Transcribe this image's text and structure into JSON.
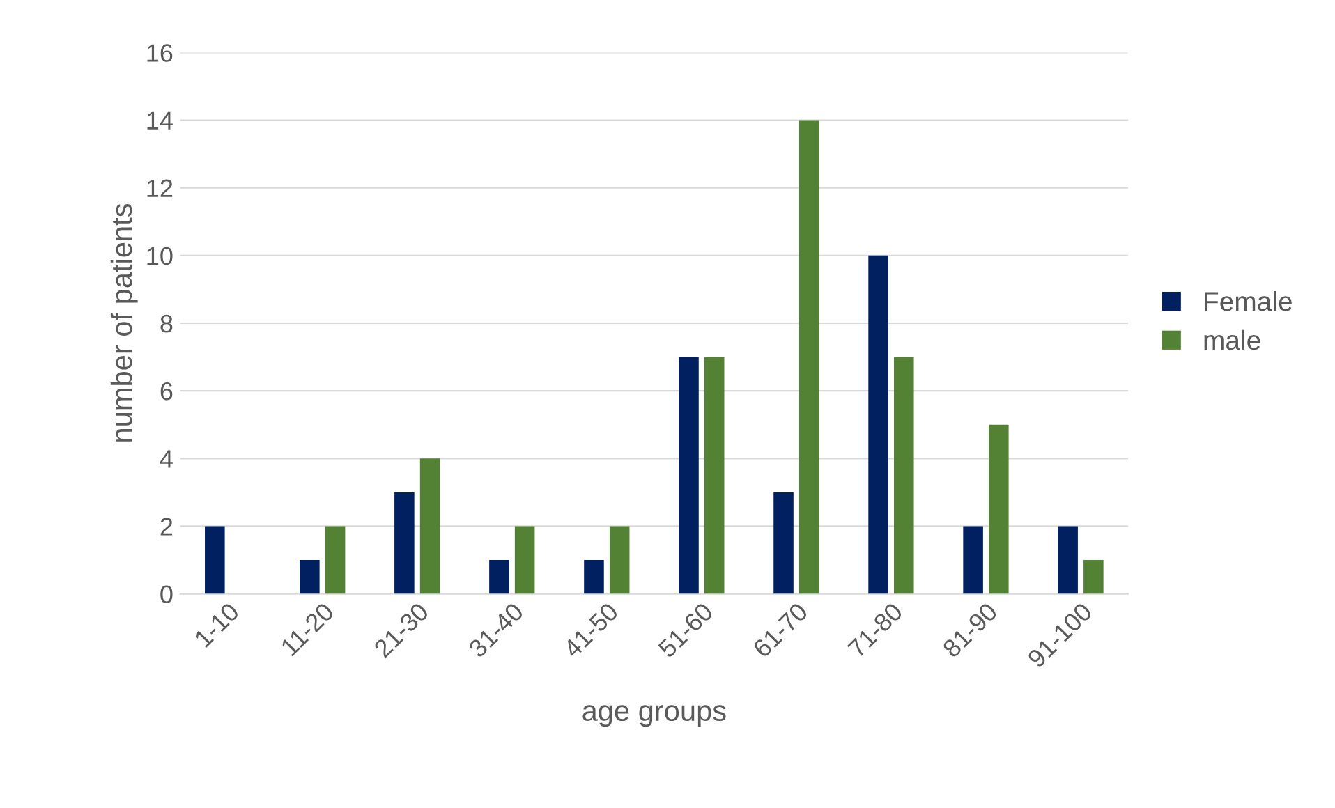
{
  "chart_data": {
    "type": "bar",
    "xlabel": "age groups",
    "ylabel": "number of patients",
    "categories": [
      "1-10",
      "11-20",
      "21-30",
      "31-40",
      "41-50",
      "51-60",
      "61-70",
      "71-80",
      "81-90",
      "91-100"
    ],
    "series": [
      {
        "name": "Female",
        "color": "#002060",
        "values": [
          2,
          1,
          3,
          1,
          1,
          7,
          3,
          10,
          2,
          2
        ]
      },
      {
        "name": "male",
        "color": "#548235",
        "values": [
          0,
          2,
          4,
          2,
          2,
          7,
          14,
          7,
          5,
          1
        ]
      }
    ],
    "ylim": [
      0,
      16
    ],
    "yticks": [
      0,
      2,
      4,
      6,
      8,
      10,
      12,
      14,
      16
    ],
    "grid": "y",
    "legend": "right"
  }
}
